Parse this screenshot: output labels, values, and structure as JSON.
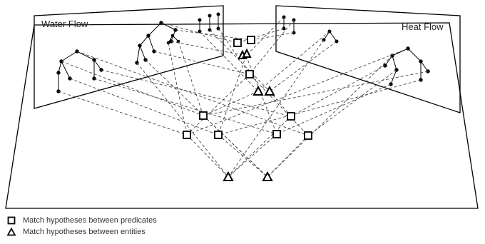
{
  "diagram": {
    "left_panel_label": "Water Flow",
    "right_panel_label": "Heat Flow"
  },
  "legend": {
    "predicates_label": "Match hypotheses between predicates",
    "entities_label": "Match hypotheses between entities"
  }
}
